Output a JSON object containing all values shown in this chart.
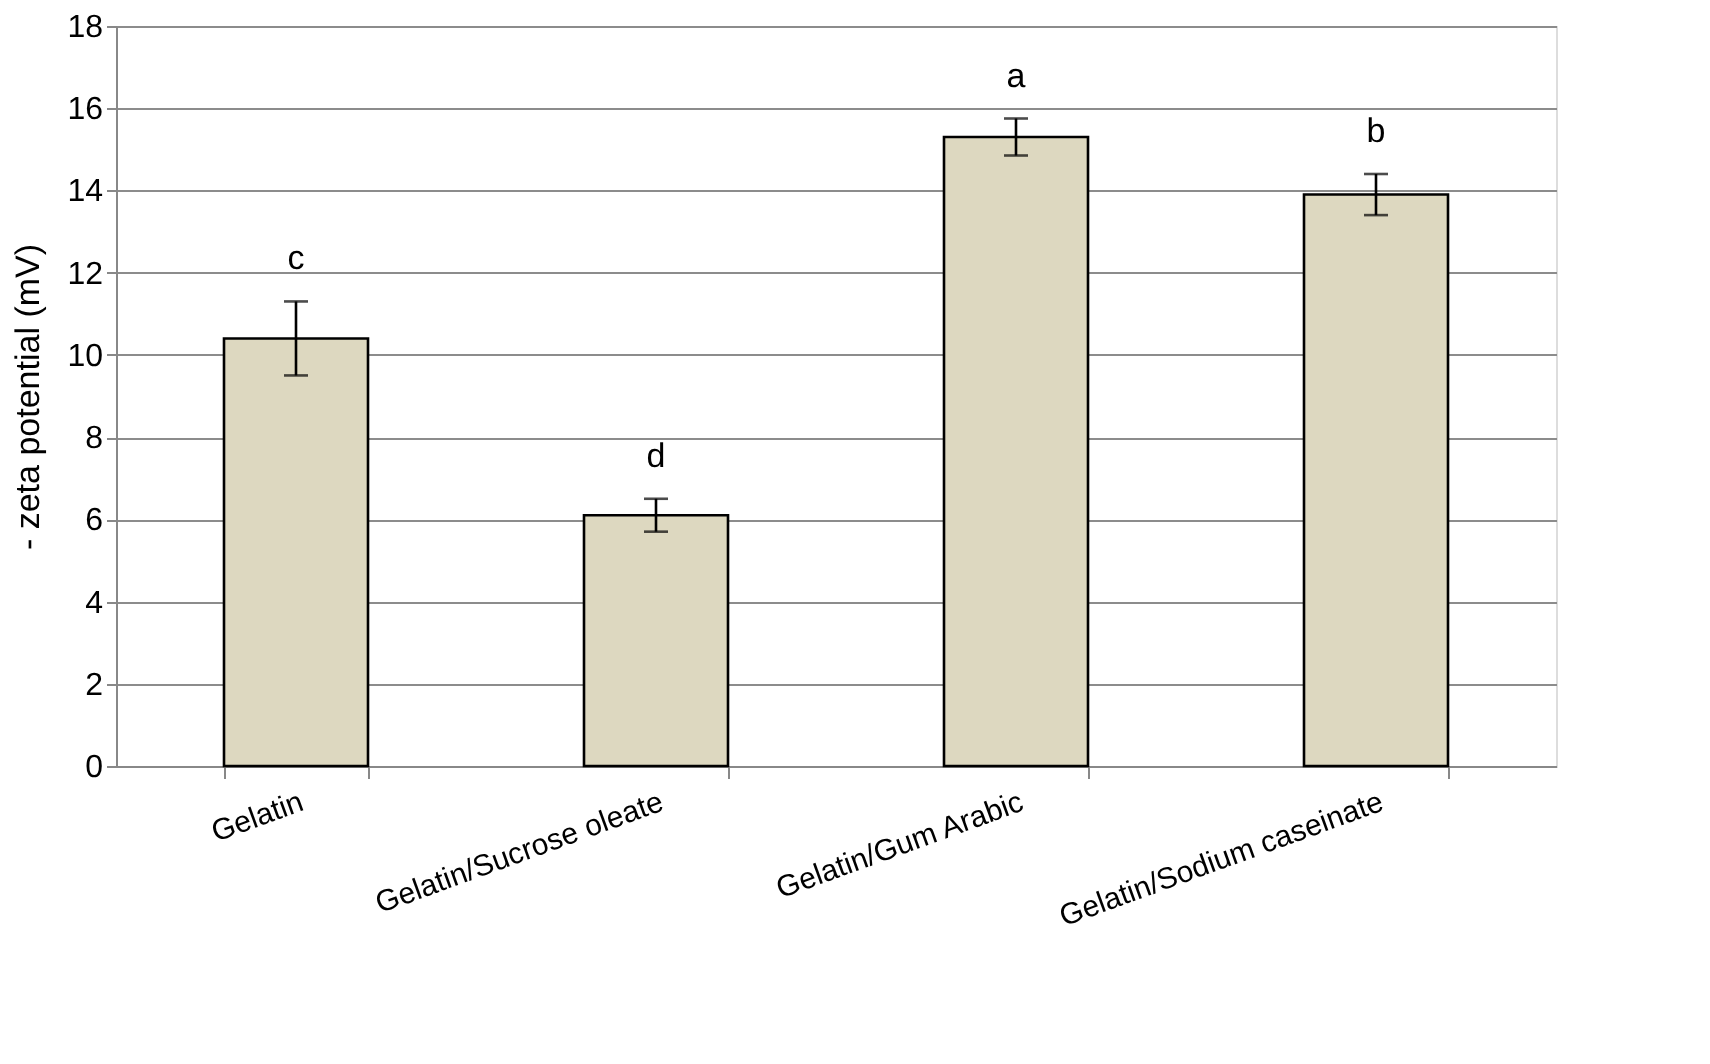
{
  "chart_data": {
    "type": "bar",
    "ylabel": "- zeta potential (mV)",
    "categories": [
      "Gelatin",
      "Gelatin/Sucrose oleate",
      "Gelatin/Gum Arabic",
      "Gelatin/Sodium caseinate"
    ],
    "values": [
      10.4,
      6.1,
      15.3,
      13.9
    ],
    "color": "#ddd8c0",
    "errors": [
      0.9,
      0.4,
      0.45,
      0.5
    ],
    "ylim": [
      0,
      18
    ],
    "yticks": [
      0,
      2,
      4,
      6,
      8,
      10,
      12,
      14,
      16,
      18
    ],
    "grid": "y",
    "annotations": [
      "c",
      "d",
      "a",
      "b"
    ]
  }
}
